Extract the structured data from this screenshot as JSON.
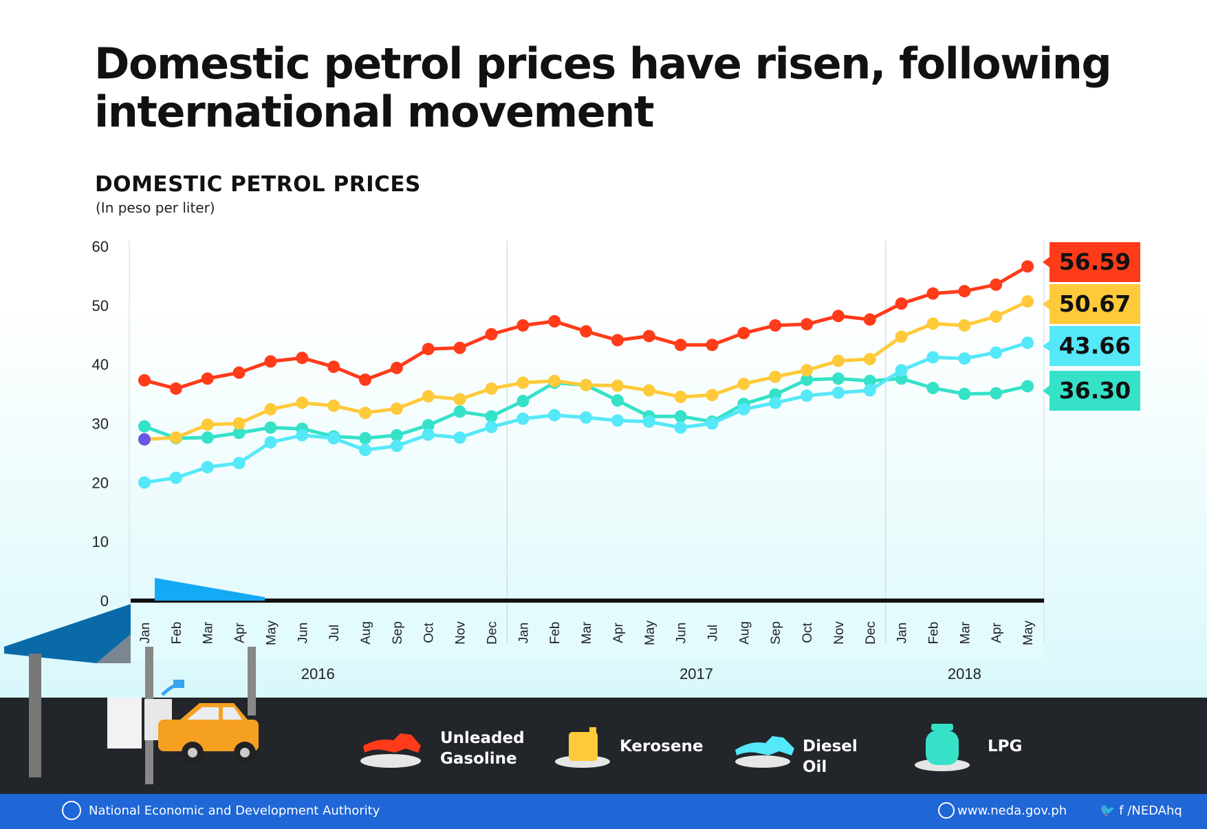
{
  "title": "Domestic petrol prices have risen, following international movement",
  "chart_title": "DOMESTIC PETROL PRICES",
  "chart_subtitle": "(In peso per liter)",
  "chart_data": {
    "type": "line",
    "title": "DOMESTIC PETROL PRICES",
    "ylabel": "(In peso per liter)",
    "ylim": [
      0,
      60
    ],
    "yticks": [
      0,
      10,
      20,
      30,
      40,
      50,
      60
    ],
    "categories": [
      "Jan",
      "Feb",
      "Mar",
      "Apr",
      "May",
      "Jun",
      "Jul",
      "Aug",
      "Sep",
      "Oct",
      "Nov",
      "Dec",
      "Jan",
      "Feb",
      "Mar",
      "Apr",
      "May",
      "Jun",
      "Jul",
      "Aug",
      "Sep",
      "Oct",
      "Nov",
      "Dec",
      "Jan",
      "Feb",
      "Mar",
      "Apr",
      "May"
    ],
    "year_groups": [
      {
        "label": "2016",
        "count": 12
      },
      {
        "label": "2017",
        "count": 12
      },
      {
        "label": "2018",
        "count": 5
      }
    ],
    "grid": "year separators only",
    "legend_position": "bottom",
    "series": [
      {
        "name": "Unleaded Gasoline",
        "color": "#ff3b1a",
        "end_label": "56.59",
        "values": [
          37.3,
          35.9,
          37.6,
          38.6,
          40.5,
          41.1,
          39.6,
          37.4,
          39.4,
          42.6,
          42.8,
          45.1,
          46.6,
          47.3,
          45.6,
          44.1,
          44.8,
          43.3,
          43.3,
          45.3,
          46.6,
          46.8,
          48.2,
          47.6,
          50.3,
          52.0,
          52.4,
          53.5,
          56.59
        ]
      },
      {
        "name": "Kerosene",
        "color": "#ffca3a",
        "end_label": "50.67",
        "values": [
          27.3,
          27.6,
          29.8,
          30.0,
          32.4,
          33.5,
          33.0,
          31.8,
          32.5,
          34.6,
          34.1,
          35.9,
          36.9,
          37.2,
          36.5,
          36.4,
          35.6,
          34.5,
          34.8,
          36.7,
          37.9,
          39.0,
          40.6,
          40.9,
          44.7,
          46.9,
          46.6,
          48.1,
          50.67
        ]
      },
      {
        "name": "Diesel Oil",
        "color": "#55e8f8",
        "end_label": "43.66",
        "values": [
          20.0,
          20.8,
          22.6,
          23.3,
          26.8,
          28.0,
          27.5,
          25.5,
          26.2,
          28.1,
          27.6,
          29.4,
          30.8,
          31.4,
          31.0,
          30.5,
          30.3,
          29.3,
          30.0,
          32.4,
          33.5,
          34.7,
          35.2,
          35.6,
          39.0,
          41.2,
          41.0,
          42.0,
          43.66
        ]
      },
      {
        "name": "LPG",
        "color": "#35e2c8",
        "end_label": "36.30",
        "values": [
          29.5,
          27.5,
          27.6,
          28.4,
          29.3,
          29.1,
          27.8,
          27.5,
          28.0,
          29.7,
          32.0,
          31.2,
          33.8,
          36.9,
          36.5,
          33.9,
          31.2,
          31.2,
          30.3,
          33.3,
          34.9,
          37.4,
          37.6,
          37.2,
          37.6,
          36.0,
          35.0,
          35.1,
          36.3
        ]
      }
    ],
    "start_point": {
      "value": 27.3,
      "color": "#6a55e8"
    }
  },
  "legend": [
    {
      "label": "Unleaded\nGasoline",
      "icon": "gas-nozzle-icon",
      "color": "#ff3b1a"
    },
    {
      "label": "Kerosene",
      "icon": "kerosene-can-icon",
      "color": "#ffca3a"
    },
    {
      "label": "Diesel Oil",
      "icon": "diesel-nozzle-icon",
      "color": "#55e8f8"
    },
    {
      "label": "LPG",
      "icon": "lpg-tank-icon",
      "color": "#35e2c8"
    }
  ],
  "footer": {
    "org": "National Economic and Development Authority",
    "website": "www.neda.gov.ph",
    "social": "🐦 f /NEDAhq"
  }
}
